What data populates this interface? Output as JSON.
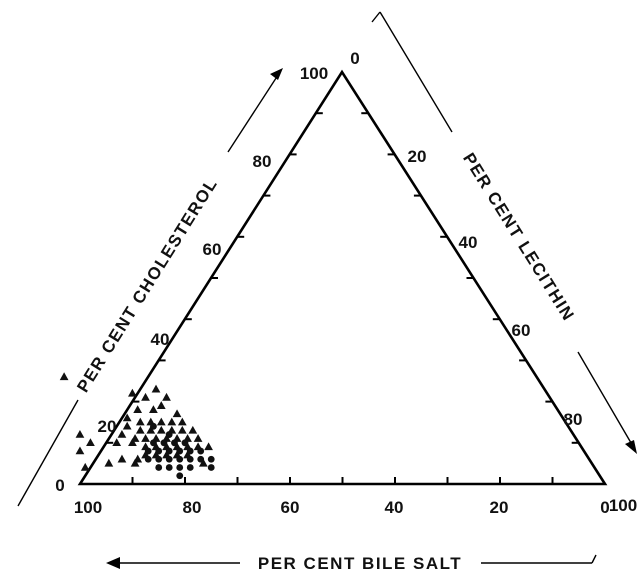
{
  "chart_data": {
    "type": "scatter",
    "subtype": "ternary",
    "title": "",
    "axes": {
      "bile_salt": {
        "label": "PER CENT BILE SALT",
        "ticks": [
          "100",
          "80",
          "60",
          "40",
          "20",
          "0"
        ]
      },
      "cholesterol": {
        "label": "PER CENT CHOLESTEROL",
        "ticks": [
          "0",
          "20",
          "40",
          "60",
          "80",
          "100"
        ]
      },
      "lecithin": {
        "label": "PER CENT LECITHIN",
        "ticks": [
          "0",
          "20",
          "40",
          "60",
          "80",
          "100"
        ]
      }
    },
    "series": [
      {
        "marker": "triangle",
        "points": [
          {
            "bile_salt": 90,
            "cholesterol": 26,
            "lecithin": -16
          },
          {
            "bile_salt": 79,
            "cholesterol": 22,
            "lecithin": -1
          },
          {
            "bile_salt": 77,
            "cholesterol": 21,
            "lecithin": 2
          },
          {
            "bile_salt": 74,
            "cholesterol": 23,
            "lecithin": 3
          },
          {
            "bile_salt": 73,
            "cholesterol": 21,
            "lecithin": 6
          },
          {
            "bile_salt": 80,
            "cholesterol": 18,
            "lecithin": 2
          },
          {
            "bile_salt": 77,
            "cholesterol": 18,
            "lecithin": 5
          },
          {
            "bile_salt": 75,
            "cholesterol": 19,
            "lecithin": 6
          },
          {
            "bile_salt": 73,
            "cholesterol": 17,
            "lecithin": 10
          },
          {
            "bile_salt": 83,
            "cholesterol": 16,
            "lecithin": 1
          },
          {
            "bile_salt": 81,
            "cholesterol": 15,
            "lecithin": 4
          },
          {
            "bile_salt": 79,
            "cholesterol": 15,
            "lecithin": 6
          },
          {
            "bile_salt": 77,
            "cholesterol": 15,
            "lecithin": 8
          },
          {
            "bile_salt": 75,
            "cholesterol": 15,
            "lecithin": 10
          },
          {
            "bile_salt": 73,
            "cholesterol": 15,
            "lecithin": 12
          },
          {
            "bile_salt": 84,
            "cholesterol": 14,
            "lecithin": 2
          },
          {
            "bile_salt": 82,
            "cholesterol": 13,
            "lecithin": 5
          },
          {
            "bile_salt": 80,
            "cholesterol": 13,
            "lecithin": 7
          },
          {
            "bile_salt": 78,
            "cholesterol": 13,
            "lecithin": 9
          },
          {
            "bile_salt": 76,
            "cholesterol": 13,
            "lecithin": 11
          },
          {
            "bile_salt": 74,
            "cholesterol": 13,
            "lecithin": 13
          },
          {
            "bile_salt": 72,
            "cholesterol": 13,
            "lecithin": 15
          },
          {
            "bile_salt": 94,
            "cholesterol": 12,
            "lecithin": -6
          },
          {
            "bile_salt": 86,
            "cholesterol": 12,
            "lecithin": 2
          },
          {
            "bile_salt": 84,
            "cholesterol": 11,
            "lecithin": 5
          },
          {
            "bile_salt": 82,
            "cholesterol": 11,
            "lecithin": 7
          },
          {
            "bile_salt": 80,
            "cholesterol": 11,
            "lecithin": 9
          },
          {
            "bile_salt": 78,
            "cholesterol": 11,
            "lecithin": 11
          },
          {
            "bile_salt": 76,
            "cholesterol": 11,
            "lecithin": 13
          },
          {
            "bile_salt": 74,
            "cholesterol": 11,
            "lecithin": 15
          },
          {
            "bile_salt": 72,
            "cholesterol": 11,
            "lecithin": 17
          },
          {
            "bile_salt": 93,
            "cholesterol": 10,
            "lecithin": -3
          },
          {
            "bile_salt": 88,
            "cholesterol": 10,
            "lecithin": 2
          },
          {
            "bile_salt": 85,
            "cholesterol": 10,
            "lecithin": 5
          },
          {
            "bile_salt": 83,
            "cholesterol": 9,
            "lecithin": 8
          },
          {
            "bile_salt": 81,
            "cholesterol": 9,
            "lecithin": 10
          },
          {
            "bile_salt": 79,
            "cholesterol": 9,
            "lecithin": 12
          },
          {
            "bile_salt": 77,
            "cholesterol": 9,
            "lecithin": 14
          },
          {
            "bile_salt": 75,
            "cholesterol": 9,
            "lecithin": 16
          },
          {
            "bile_salt": 73,
            "cholesterol": 9,
            "lecithin": 18
          },
          {
            "bile_salt": 71,
            "cholesterol": 9,
            "lecithin": 20
          },
          {
            "bile_salt": 96,
            "cholesterol": 8,
            "lecithin": -4
          },
          {
            "bile_salt": 84,
            "cholesterol": 7,
            "lecithin": 9
          },
          {
            "bile_salt": 82,
            "cholesterol": 7,
            "lecithin": 11
          },
          {
            "bile_salt": 80,
            "cholesterol": 7,
            "lecithin": 13
          },
          {
            "bile_salt": 78,
            "cholesterol": 7,
            "lecithin": 15
          },
          {
            "bile_salt": 76,
            "cholesterol": 7,
            "lecithin": 17
          },
          {
            "bile_salt": 89,
            "cholesterol": 6,
            "lecithin": 5
          },
          {
            "bile_salt": 86,
            "cholesterol": 6,
            "lecithin": 8
          },
          {
            "bile_salt": 97,
            "cholesterol": 4,
            "lecithin": -1
          },
          {
            "bile_salt": 92,
            "cholesterol": 5,
            "lecithin": 3
          },
          {
            "bile_salt": 87,
            "cholesterol": 5,
            "lecithin": 8
          },
          {
            "bile_salt": 74,
            "cholesterol": 5,
            "lecithin": 21
          }
        ]
      },
      {
        "marker": "circle",
        "points": [
          {
            "bile_salt": 79,
            "cholesterol": 14,
            "lecithin": 7
          },
          {
            "bile_salt": 77,
            "cholesterol": 12,
            "lecithin": 11
          },
          {
            "bile_salt": 81,
            "cholesterol": 10,
            "lecithin": 9
          },
          {
            "bile_salt": 79,
            "cholesterol": 10,
            "lecithin": 11
          },
          {
            "bile_salt": 77,
            "cholesterol": 10,
            "lecithin": 13
          },
          {
            "bile_salt": 75,
            "cholesterol": 10,
            "lecithin": 15
          },
          {
            "bile_salt": 83,
            "cholesterol": 8,
            "lecithin": 9
          },
          {
            "bile_salt": 81,
            "cholesterol": 8,
            "lecithin": 11
          },
          {
            "bile_salt": 79,
            "cholesterol": 8,
            "lecithin": 13
          },
          {
            "bile_salt": 77,
            "cholesterol": 8,
            "lecithin": 15
          },
          {
            "bile_salt": 75,
            "cholesterol": 8,
            "lecithin": 17
          },
          {
            "bile_salt": 73,
            "cholesterol": 8,
            "lecithin": 19
          },
          {
            "bile_salt": 84,
            "cholesterol": 6,
            "lecithin": 10
          },
          {
            "bile_salt": 82,
            "cholesterol": 6,
            "lecithin": 12
          },
          {
            "bile_salt": 80,
            "cholesterol": 6,
            "lecithin": 14
          },
          {
            "bile_salt": 78,
            "cholesterol": 6,
            "lecithin": 16
          },
          {
            "bile_salt": 76,
            "cholesterol": 6,
            "lecithin": 18
          },
          {
            "bile_salt": 74,
            "cholesterol": 6,
            "lecithin": 20
          },
          {
            "bile_salt": 72,
            "cholesterol": 6,
            "lecithin": 22
          },
          {
            "bile_salt": 83,
            "cholesterol": 4,
            "lecithin": 13
          },
          {
            "bile_salt": 81,
            "cholesterol": 4,
            "lecithin": 15
          },
          {
            "bile_salt": 79,
            "cholesterol": 4,
            "lecithin": 17
          },
          {
            "bile_salt": 77,
            "cholesterol": 4,
            "lecithin": 19
          },
          {
            "bile_salt": 73,
            "cholesterol": 4,
            "lecithin": 23
          },
          {
            "bile_salt": 80,
            "cholesterol": 2,
            "lecithin": 18
          }
        ]
      }
    ]
  }
}
